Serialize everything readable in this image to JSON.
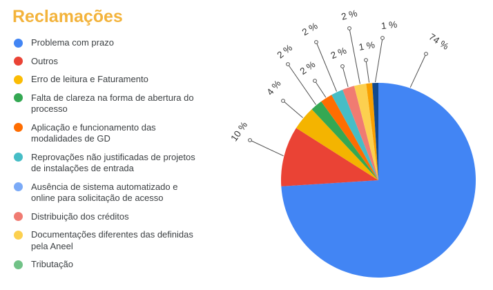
{
  "title": "Reclamações",
  "title_color": "#F3B33B",
  "chart_data": {
    "type": "pie",
    "title": "Reclamações",
    "legend_position": "left",
    "unit": "%",
    "categories": [
      "Problema com prazo",
      "Outros",
      "Erro de leitura e Faturamento",
      "Falta de clareza na forma de abertura do processo",
      "Aplicação e funcionamento das modalidades de GD",
      "Reprovações não justificadas de projetos de instalações de entrada",
      "Ausência de sistema automatizado e online para solicitação de acesso",
      "Distribuição dos créditos",
      "Documentações diferentes das definidas pela Aneel",
      "Tributação"
    ],
    "values": [
      74,
      10,
      4,
      2,
      2,
      2,
      2,
      2,
      1,
      1
    ],
    "slice_labels": [
      "74 %",
      "10 %",
      "4 %",
      "2 %",
      "2 %",
      "2 %",
      "2 %",
      "2 %",
      "1 %",
      "1 %"
    ],
    "legend_colors": [
      "#4285F4",
      "#EA4335",
      "#FBBC04",
      "#34A853",
      "#FF6D01",
      "#46BDC6",
      "#7BAAF7",
      "#F07B72",
      "#FCD04F",
      "#71C287"
    ],
    "slice_colors": [
      "#4285F4",
      "#EA4335",
      "#F4B400",
      "#34A853",
      "#FF6D01",
      "#46BDC6",
      "#F07B72",
      "#FCD04F",
      "#F9A000",
      "#124A8F"
    ]
  },
  "legend": {
    "items": [
      {
        "label": "Problema com prazo"
      },
      {
        "label": "Outros"
      },
      {
        "label": "Erro de leitura e Faturamento"
      },
      {
        "label": "Falta de clareza na forma de abertura do\nprocesso"
      },
      {
        "label": "Aplicação e funcionamento das\nmodalidades de GD"
      },
      {
        "label": "Reprovações não justificadas de projetos\nde instalações de entrada"
      },
      {
        "label": "Ausência de sistema automatizado e\nonline para solicitação de acesso"
      },
      {
        "label": "Distribuição dos créditos"
      },
      {
        "label": "Documentações diferentes das definidas\npela Aneel"
      },
      {
        "label": "Tributação"
      }
    ]
  }
}
